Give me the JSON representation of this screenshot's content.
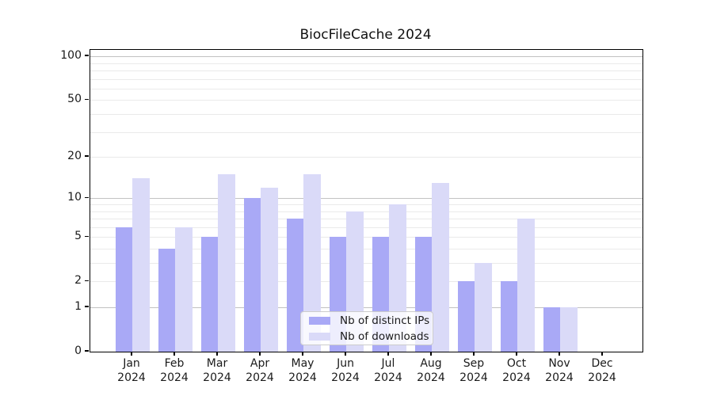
{
  "chart_data": {
    "type": "bar",
    "title": "BiocFileCache 2024",
    "categories": [
      "Jan 2024",
      "Feb 2024",
      "Mar 2024",
      "Apr 2024",
      "May 2024",
      "Jun 2024",
      "Jul 2024",
      "Aug 2024",
      "Sep 2024",
      "Oct 2024",
      "Nov 2024",
      "Dec 2024"
    ],
    "series": [
      {
        "name": "Nb of distinct IPs",
        "color": "#a9a9f6",
        "values": [
          6,
          4,
          5,
          10,
          7,
          5,
          5,
          5,
          2,
          2,
          1,
          0
        ]
      },
      {
        "name": "Nb of downloads",
        "color": "#dadaf8",
        "values": [
          14,
          6,
          15,
          12,
          15,
          8,
          9,
          13,
          3,
          7,
          1,
          0
        ]
      }
    ],
    "xlabel": "",
    "ylabel": "",
    "yscale": "log10(1+v)",
    "ylim": [
      0,
      111
    ],
    "yticks": [
      0,
      1,
      2,
      5,
      10,
      20,
      50,
      100
    ],
    "grid": true,
    "grid_major": [
      1,
      10,
      100
    ],
    "grid_minor": [
      2,
      3,
      4,
      5,
      6,
      7,
      8,
      9,
      20,
      30,
      40,
      50,
      60,
      70,
      80,
      90
    ],
    "legend_position": "lower center",
    "colors": {
      "grid_major": "#c2c2c2",
      "grid_minor": "#eaeaea",
      "axis": "#000000",
      "text": "#1a1a1a"
    }
  }
}
